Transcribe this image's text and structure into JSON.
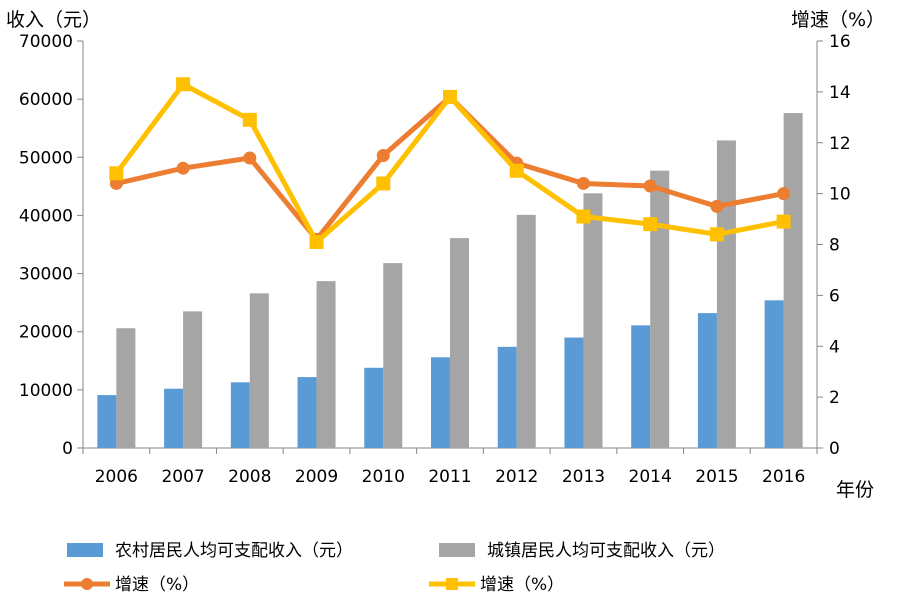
{
  "chart_data": {
    "type": "bar",
    "categories": [
      "2006",
      "2007",
      "2008",
      "2009",
      "2010",
      "2011",
      "2012",
      "2013",
      "2014",
      "2015",
      "2016"
    ],
    "left_axis": {
      "title": "收入（元）",
      "ylim": [
        0,
        70000
      ],
      "ticks": [
        "0",
        "10000",
        "20000",
        "30000",
        "40000",
        "50000",
        "60000",
        "70000"
      ]
    },
    "right_axis": {
      "title": "增速（%）",
      "ylim": [
        0,
        16
      ],
      "ticks": [
        "0",
        "2",
        "4",
        "6",
        "8",
        "10",
        "12",
        "14",
        "16"
      ]
    },
    "x_axis_title": "年份",
    "series": [
      {
        "name": "农村居民人均可支配收入（元）",
        "kind": "bar",
        "axis": "left",
        "color": "#5b9bd5",
        "values": [
          9100,
          10200,
          11300,
          12200,
          13800,
          15600,
          17400,
          19000,
          21100,
          23200,
          25400
        ]
      },
      {
        "name": "城镇居民人均可支配收入（元）",
        "kind": "bar",
        "axis": "left",
        "color": "#a5a5a5",
        "values": [
          20600,
          23500,
          26600,
          28700,
          31800,
          36100,
          40100,
          43800,
          47700,
          52900,
          57600
        ]
      },
      {
        "name": "增速（%）",
        "kind": "line",
        "marker": "circle",
        "axis": "right",
        "color": "#ed7d31",
        "values": [
          10.4,
          11.0,
          11.4,
          8.2,
          11.5,
          13.8,
          11.2,
          10.4,
          10.3,
          9.5,
          10.0
        ]
      },
      {
        "name": "增速（%）",
        "kind": "line",
        "marker": "square",
        "axis": "right",
        "color": "#ffc000",
        "values": [
          10.8,
          14.3,
          12.9,
          8.1,
          10.4,
          13.8,
          10.9,
          9.1,
          8.8,
          8.4,
          8.9
        ]
      }
    ],
    "grid": false,
    "legend_position": "bottom"
  }
}
